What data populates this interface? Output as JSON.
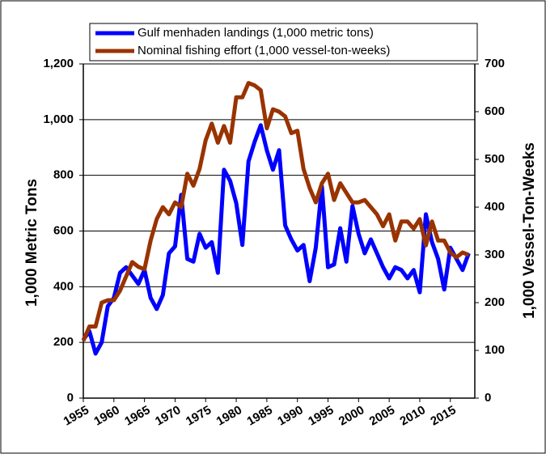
{
  "chart_data": {
    "type": "line",
    "x": [
      1955,
      1956,
      1957,
      1958,
      1959,
      1960,
      1961,
      1962,
      1963,
      1964,
      1965,
      1966,
      1967,
      1968,
      1969,
      1970,
      1971,
      1972,
      1973,
      1974,
      1975,
      1976,
      1977,
      1978,
      1979,
      1980,
      1981,
      1982,
      1983,
      1984,
      1985,
      1986,
      1987,
      1988,
      1989,
      1990,
      1991,
      1992,
      1993,
      1994,
      1995,
      1996,
      1997,
      1998,
      1999,
      2000,
      2001,
      2002,
      2003,
      2004,
      2005,
      2006,
      2007,
      2008,
      2009,
      2010,
      2011,
      2012,
      2013,
      2014,
      2015,
      2016,
      2017,
      2018
    ],
    "series": [
      {
        "name": "Gulf menhaden landings (1,000  metric tons)",
        "color": "#0000ff",
        "values": [
          210,
          240,
          160,
          200,
          330,
          360,
          450,
          470,
          440,
          410,
          460,
          360,
          320,
          370,
          520,
          545,
          730,
          500,
          490,
          590,
          540,
          560,
          450,
          820,
          780,
          700,
          550,
          850,
          920,
          980,
          890,
          820,
          890,
          620,
          570,
          530,
          550,
          420,
          540,
          760,
          470,
          480,
          610,
          490,
          690,
          590,
          520,
          570,
          520,
          470,
          430,
          470,
          460,
          430,
          460,
          380,
          660,
          560,
          500,
          390,
          540,
          500,
          460,
          520
        ]
      },
      {
        "name": "Nominal fishing effort (1,000 vessel-ton-weeks)",
        "color": "#993300",
        "axis": "y2",
        "values": [
          120,
          150,
          150,
          200,
          205,
          205,
          225,
          255,
          285,
          275,
          270,
          330,
          375,
          400,
          385,
          410,
          400,
          470,
          445,
          480,
          540,
          575,
          535,
          570,
          535,
          630,
          630,
          660,
          655,
          645,
          565,
          605,
          600,
          590,
          555,
          560,
          480,
          440,
          410,
          450,
          470,
          415,
          450,
          430,
          410,
          410,
          415,
          400,
          385,
          360,
          385,
          330,
          370,
          370,
          355,
          375,
          320,
          370,
          330,
          330,
          305,
          295,
          305,
          300
        ]
      }
    ],
    "xlim": [
      1955,
      2019
    ],
    "xticks": [
      1955,
      1960,
      1965,
      1970,
      1975,
      1980,
      1985,
      1990,
      1995,
      2000,
      2005,
      2010,
      2015
    ],
    "ylim": [
      0,
      1200
    ],
    "yticks": [
      0,
      200,
      400,
      600,
      800,
      {
        "value": 1000,
        "label": "1,000"
      },
      {
        "value": 1200,
        "label": "1,200"
      }
    ],
    "y2lim": [
      0,
      700
    ],
    "y2ticks": [
      0,
      100,
      200,
      300,
      400,
      500,
      600,
      700
    ],
    "ylabel": "1,000 Metric Tons",
    "y2label": "1,000 Vessel-Ton-Weeks",
    "grid": true
  }
}
